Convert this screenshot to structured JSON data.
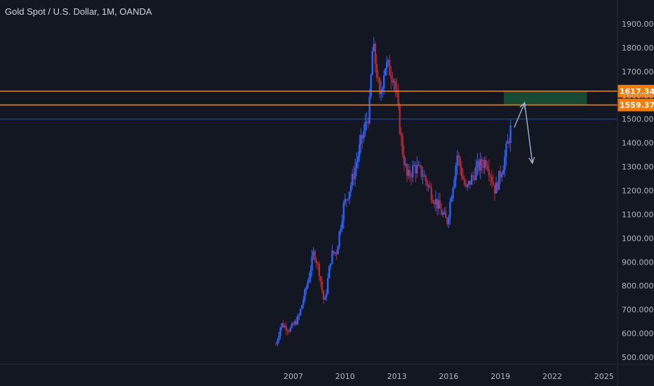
{
  "header": {
    "title": "Gold Spot / U.S. Dollar, 1M, OANDA"
  },
  "colors": {
    "background": "#131722",
    "up": "#2962ff",
    "down": "#b22833",
    "resistance": "#f57c00",
    "current_line": "#2962ff",
    "zone_fill": "#1b5e3c",
    "axis_text": "#b2b5be",
    "projection": "#9fb3d6"
  },
  "chart_data": {
    "type": "candlestick",
    "title": "Gold Spot / U.S. Dollar, 1M, OANDA",
    "xlabel": "",
    "ylabel": "",
    "ylim": [
      480,
      1950
    ],
    "xlim": [
      2004.5,
      2025.5
    ],
    "grid": false,
    "y_ticks": [
      "1900.000",
      "1800.000",
      "1700.000",
      "1600.000",
      "1500.000",
      "1400.000",
      "1300.000",
      "1200.000",
      "1100.000",
      "1000.000",
      "900.000",
      "800.000",
      "700.000",
      "600.000",
      "500.000"
    ],
    "y_tick_values": [
      1900,
      1800,
      1700,
      1600,
      1500,
      1400,
      1300,
      1200,
      1100,
      1000,
      900,
      800,
      700,
      600,
      500
    ],
    "x_ticks": [
      "2007",
      "2010",
      "2013",
      "2016",
      "2019",
      "2022",
      "2025"
    ],
    "x_tick_values": [
      2007,
      2010,
      2013,
      2016,
      2019,
      2022,
      2025
    ],
    "horizontal_levels": [
      {
        "value": 1617.349,
        "label": "1617.349",
        "color": "#f57c00"
      },
      {
        "value": 1559.37,
        "label": "1559.370",
        "color": "#f57c00"
      }
    ],
    "current_price_line": 1500,
    "zone": {
      "x_start": 2019.2,
      "x_end": 2024.0,
      "y_low": 1559.37,
      "y_high": 1617.349
    },
    "projection_path": [
      [
        2019.8,
        1465
      ],
      [
        2020.4,
        1568
      ],
      [
        2020.85,
        1315
      ]
    ],
    "anchors": [
      [
        2006.0,
        555
      ],
      [
        2006.3,
        640
      ],
      [
        2006.8,
        615
      ],
      [
        2007.3,
        665
      ],
      [
        2007.8,
        805
      ],
      [
        2008.2,
        945
      ],
      [
        2008.5,
        860
      ],
      [
        2008.8,
        720
      ],
      [
        2009.2,
        930
      ],
      [
        2009.5,
        945
      ],
      [
        2009.9,
        1130
      ],
      [
        2010.4,
        1240
      ],
      [
        2010.9,
        1395
      ],
      [
        2011.4,
        1535
      ],
      [
        2011.6,
        1805
      ],
      [
        2011.8,
        1720
      ],
      [
        2012.0,
        1580
      ],
      [
        2012.3,
        1730
      ],
      [
        2012.8,
        1690
      ],
      [
        2013.0,
        1580
      ],
      [
        2013.3,
        1380
      ],
      [
        2013.6,
        1250
      ],
      [
        2014.0,
        1300
      ],
      [
        2014.5,
        1270
      ],
      [
        2015.0,
        1190
      ],
      [
        2015.5,
        1120
      ],
      [
        2015.9,
        1065
      ],
      [
        2016.5,
        1350
      ],
      [
        2017.0,
        1200
      ],
      [
        2017.6,
        1290
      ],
      [
        2018.2,
        1330
      ],
      [
        2018.7,
        1200
      ],
      [
        2019.2,
        1320
      ],
      [
        2019.6,
        1460
      ]
    ]
  }
}
